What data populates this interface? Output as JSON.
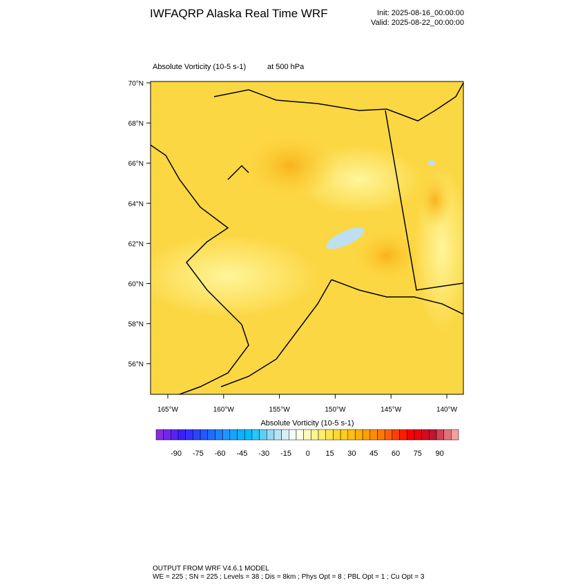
{
  "header": {
    "title": "IWFAQRP Alaska Real Time WRF",
    "init": "Init: 2025-08-16_00:00:00",
    "valid": "Valid: 2025-08-22_00:00:00"
  },
  "map": {
    "field": "Absolute Vorticity   (10-5 s-1)",
    "level": "at   500 hPa",
    "lat_labels": [
      "70°N",
      "68°N",
      "66°N",
      "64°N",
      "62°N",
      "60°N",
      "58°N",
      "56°N"
    ],
    "lon_labels": [
      "165°W",
      "160°W",
      "155°W",
      "150°W",
      "145°W",
      "140°W"
    ]
  },
  "colorbar": {
    "title": "Absolute Vorticity  (10-5 s-1)",
    "labels": [
      -90,
      -75,
      -60,
      -45,
      -30,
      -15,
      0,
      15,
      30,
      45,
      60,
      75,
      90
    ]
  },
  "footer": {
    "line1": "OUTPUT FROM WRF V4.6.1 MODEL",
    "line2": "WE = 225 ; SN = 225 ; Levels = 38 ; Dis = 8km ; Phys Opt = 8 ; PBL Opt = 1 ; Cu Opt = 3"
  }
}
